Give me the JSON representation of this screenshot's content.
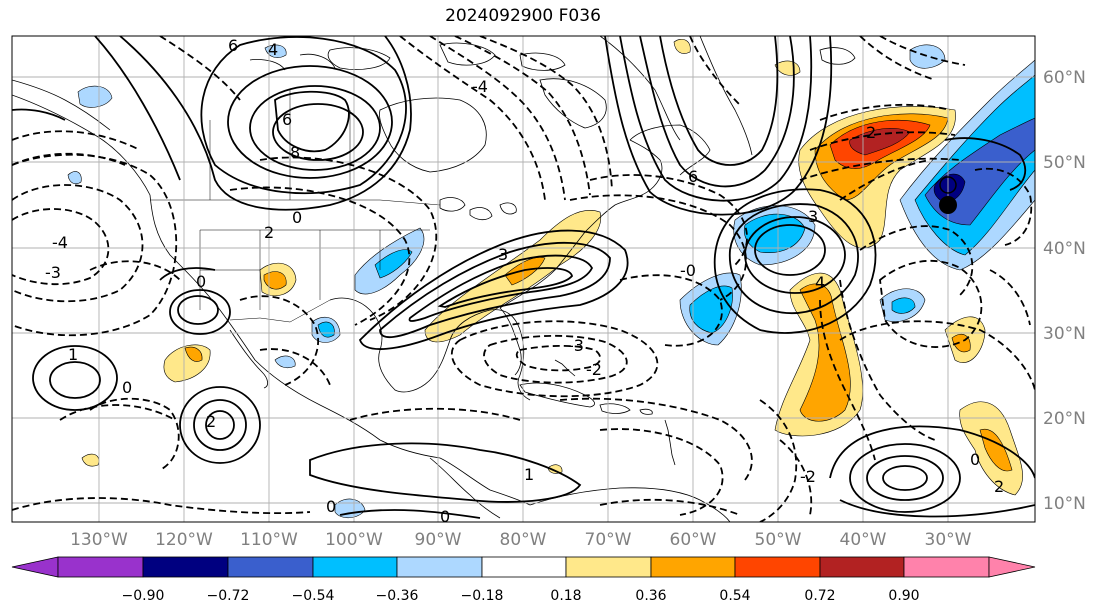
{
  "title": "2024092900 F036",
  "lon_ticks": [
    "130°W",
    "120°W",
    "110°W",
    "100°W",
    "90°W",
    "80°W",
    "70°W",
    "60°W",
    "50°W",
    "40°W",
    "30°W"
  ],
  "lat_ticks": [
    "60°N",
    "50°N",
    "40°N",
    "30°N",
    "20°N",
    "10°N"
  ],
  "colorbar": {
    "ticks": [
      "−0.90",
      "−0.72",
      "−0.54",
      "−0.36",
      "−0.18",
      "0.18",
      "0.36",
      "0.54",
      "0.72",
      "0.90"
    ],
    "colors": [
      "#9932cc",
      "#000080",
      "#3a5fcd",
      "#00bfff",
      "#add8ff",
      "#ffffff",
      "#ffe88a",
      "#ffa500",
      "#ff4500",
      "#b22222",
      "#ff82ab"
    ]
  },
  "contour_labels": [
    {
      "text": "6",
      "id": "c1"
    },
    {
      "text": "4",
      "id": "c2"
    },
    {
      "text": "6",
      "id": "c3"
    },
    {
      "text": "8",
      "id": "c4"
    },
    {
      "text": "0",
      "id": "c5"
    },
    {
      "text": "2",
      "id": "c6"
    },
    {
      "text": "-4",
      "id": "c7"
    },
    {
      "text": "-3",
      "id": "c8"
    },
    {
      "text": "0",
      "id": "c9"
    },
    {
      "text": "1",
      "id": "c10"
    },
    {
      "text": "0",
      "id": "c11"
    },
    {
      "text": "2",
      "id": "c12"
    },
    {
      "text": "3",
      "id": "c13"
    },
    {
      "text": "-3",
      "id": "c14"
    },
    {
      "text": "-2",
      "id": "c15"
    },
    {
      "text": "6",
      "id": "c16"
    },
    {
      "text": "3",
      "id": "c17"
    },
    {
      "text": "-0",
      "id": "c18"
    },
    {
      "text": "4",
      "id": "c19"
    },
    {
      "text": "2",
      "id": "c20"
    },
    {
      "text": "1",
      "id": "c21"
    },
    {
      "text": "0",
      "id": "c22"
    },
    {
      "text": "0",
      "id": "c23"
    },
    {
      "text": "2",
      "id": "c24"
    },
    {
      "text": "-2",
      "id": "c25"
    },
    {
      "text": "0",
      "id": "c26"
    },
    {
      "text": "-4",
      "id": "c27"
    }
  ]
}
